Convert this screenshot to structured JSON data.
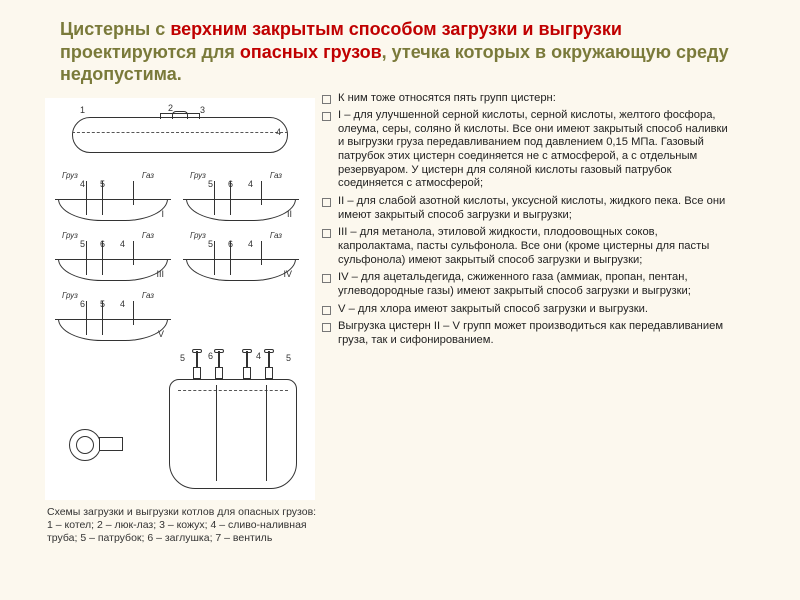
{
  "title": {
    "part1": "Цистерны с ",
    "red1": "верхним закрытым способом загрузки и выгрузки",
    "part2": " проектируются для ",
    "red2": "опасных грузов",
    "part3": ", утечка которых в окружающую среду недопустима.",
    "color_red": "#c00000",
    "color_olive": "#7a7a3a"
  },
  "diagram": {
    "tank_labels": [
      "1",
      "2",
      "3",
      "4"
    ],
    "schemes": [
      {
        "roman": "I",
        "left": "Груз",
        "right": "Газ",
        "nums": [
          "4",
          "5"
        ]
      },
      {
        "roman": "II",
        "left": "Груз",
        "right": "Газ",
        "nums": [
          "5",
          "6",
          "4"
        ]
      },
      {
        "roman": "III",
        "left": "Груз",
        "right": "Газ",
        "nums": [
          "5",
          "6",
          "4"
        ]
      },
      {
        "roman": "IV",
        "left": "Груз",
        "right": "Газ",
        "nums": [
          "5",
          "6",
          "4"
        ]
      },
      {
        "roman": "V",
        "left": "Груз",
        "right": "Газ",
        "nums": [
          "6",
          "5",
          "4"
        ]
      }
    ],
    "big_nums": [
      "5",
      "6",
      "4",
      "5"
    ],
    "caption": "Схемы загрузки и выгрузки котлов для опасных грузов: 1 – котел; 2 – люк-лаз; 3 – кожух; 4 – сливо-наливная труба; 5 – патрубок; 6 – заглушка; 7 – вентиль"
  },
  "bullets": [
    "К ним тоже относятся пять групп цистерн:",
    "I – для улучшенной серной кислоты, серной кислоты, желтого фосфора, олеума, серы, соляно й кислоты. Все они имеют закрытый способ наливки и выгрузки груза передавливанием под давлением 0,15 МПа. Газовый патрубок этих цистерн соединяется не с атмосферой, а с отдельным резервуаром. У цистерн для соляной кислоты газовый патрубок соединяется с атмосферой;",
    "II – для слабой азотной кислоты, уксусной кислоты, жидкого пека. Все они имеют закрытый способ загрузки и выгрузки;",
    "III – для метанола, этиловой жидкости, плодоовощных соков, капролактама, пасты сульфонола. Все они (кроме цистерны для пасты сульфонола) имеют закрытый способ загрузки и выгрузки;",
    "IV – для ацетальдегида, сжиженного газа (аммиак, пропан, пентан, углеводородные газы) имеют закрытый способ загрузки и выгрузки;",
    "V – для хлора имеют закрытый способ загрузки и выгрузки.",
    "Выгрузка цистерн II – V групп может производиться как передавливанием груза, так и сифонированием."
  ]
}
